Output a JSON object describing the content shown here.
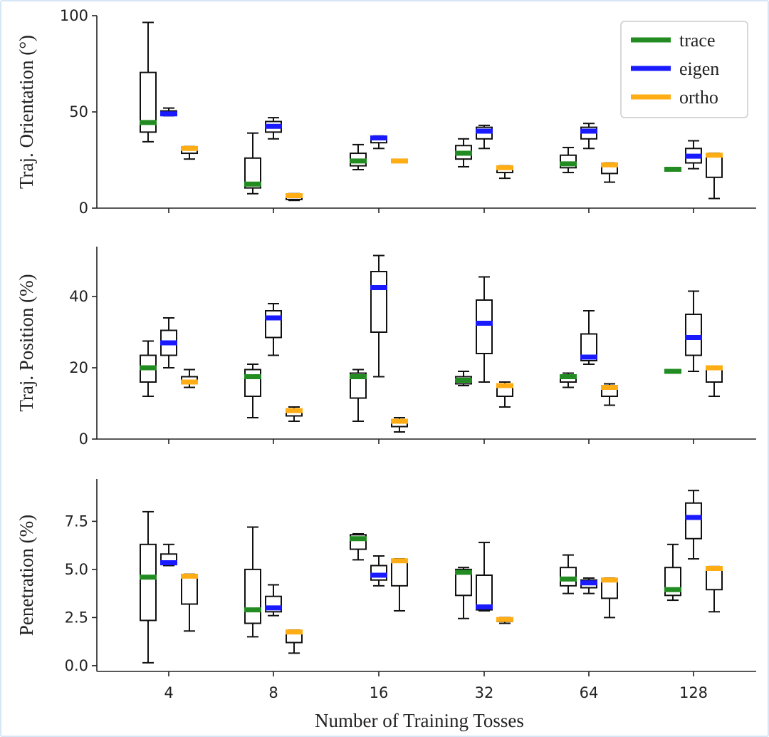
{
  "chart_data": {
    "type": "box",
    "xlabel": "Number of Training Tosses",
    "categories": [
      "4",
      "8",
      "16",
      "32",
      "64",
      "128"
    ],
    "series_names": [
      "trace",
      "eigen",
      "ortho"
    ],
    "colors": {
      "trace": "#228b22",
      "eigen": "#1a1aff",
      "ortho": "#ffad14"
    },
    "legend": {
      "placement": "top-right",
      "entries": [
        "trace",
        "eigen",
        "ortho"
      ]
    },
    "panels": [
      {
        "ylabel": "Traj. Orientation (°)",
        "ylim": [
          0,
          100
        ],
        "yticks": [
          0,
          50,
          100
        ],
        "ytick_labels": [
          "0",
          "50",
          "100"
        ],
        "boxes": {
          "trace": [
            {
              "whislo": 34.5,
              "q1": 39.5,
              "med": 44.5,
              "q3": 70.5,
              "whishi": 96.5
            },
            {
              "whislo": 7.5,
              "q1": 10.5,
              "med": 12.5,
              "q3": 26,
              "whishi": 39
            },
            {
              "whislo": 20,
              "q1": 22,
              "med": 24.5,
              "q3": 28.5,
              "whishi": 33
            },
            {
              "whislo": 21.5,
              "q1": 25.5,
              "med": 28.5,
              "q3": 32.5,
              "whishi": 36
            },
            {
              "whislo": 18.5,
              "q1": 21,
              "med": 23,
              "q3": 27.5,
              "whishi": 31.5
            },
            {
              "whislo": 19.5,
              "q1": 19.8,
              "med": 20.2,
              "q3": 20.6,
              "whishi": 21
            }
          ],
          "eigen": [
            {
              "whislo": 48,
              "q1": 48.5,
              "med": 49,
              "q3": 50.5,
              "whishi": 52
            },
            {
              "whislo": 36,
              "q1": 39.5,
              "med": 42.5,
              "q3": 45,
              "whishi": 47
            },
            {
              "whislo": 31,
              "q1": 34,
              "med": 36.5,
              "q3": 37,
              "whishi": 37.5
            },
            {
              "whislo": 31,
              "q1": 36,
              "med": 40,
              "q3": 42,
              "whishi": 43
            },
            {
              "whislo": 31,
              "q1": 36,
              "med": 40,
              "q3": 42,
              "whishi": 44
            },
            {
              "whislo": 20.5,
              "q1": 23.5,
              "med": 27,
              "q3": 31,
              "whishi": 35
            }
          ],
          "ortho": [
            {
              "whislo": 25.5,
              "q1": 28.5,
              "med": 31,
              "q3": 31.5,
              "whishi": 32
            },
            {
              "whislo": 4,
              "q1": 4.5,
              "med": 6.5,
              "q3": 7,
              "whishi": 7.5
            },
            {
              "whislo": 24,
              "q1": 24.2,
              "med": 24.5,
              "q3": 24.7,
              "whishi": 25
            },
            {
              "whislo": 15.5,
              "q1": 18.5,
              "med": 21,
              "q3": 21.5,
              "whishi": 22
            },
            {
              "whislo": 13.5,
              "q1": 18,
              "med": 22.5,
              "q3": 23,
              "whishi": 23.5
            },
            {
              "whislo": 5,
              "q1": 16,
              "med": 27.5,
              "q3": 28,
              "whishi": 28.5
            }
          ]
        }
      },
      {
        "ylabel": "Traj. Position (%)",
        "ylim": [
          0,
          54
        ],
        "yticks": [
          0,
          20,
          40
        ],
        "ytick_labels": [
          "0",
          "20",
          "40"
        ],
        "boxes": {
          "trace": [
            {
              "whislo": 12,
              "q1": 16,
              "med": 20,
              "q3": 23.5,
              "whishi": 27.5
            },
            {
              "whislo": 6,
              "q1": 12,
              "med": 17.5,
              "q3": 19.5,
              "whishi": 21
            },
            {
              "whislo": 5,
              "q1": 11.5,
              "med": 17.5,
              "q3": 18.5,
              "whishi": 19.5
            },
            {
              "whislo": 15,
              "q1": 15.5,
              "med": 16.5,
              "q3": 17.5,
              "whishi": 19
            },
            {
              "whislo": 14.5,
              "q1": 16,
              "med": 17.5,
              "q3": 18,
              "whishi": 18.5
            },
            {
              "whislo": 18.5,
              "q1": 18.7,
              "med": 19,
              "q3": 19.2,
              "whishi": 19.5
            }
          ],
          "eigen": [
            {
              "whislo": 20,
              "q1": 23.5,
              "med": 27,
              "q3": 30.5,
              "whishi": 34
            },
            {
              "whislo": 23.5,
              "q1": 28.5,
              "med": 34,
              "q3": 36,
              "whishi": 38
            },
            {
              "whislo": 17.5,
              "q1": 30,
              "med": 42.5,
              "q3": 47,
              "whishi": 51.5
            },
            {
              "whislo": 16,
              "q1": 24,
              "med": 32.5,
              "q3": 39,
              "whishi": 45.5
            },
            {
              "whislo": 21,
              "q1": 22,
              "med": 23,
              "q3": 29.5,
              "whishi": 36
            },
            {
              "whislo": 19,
              "q1": 23.5,
              "med": 28.5,
              "q3": 35,
              "whishi": 41.5
            }
          ],
          "ortho": [
            {
              "whislo": 14.5,
              "q1": 16,
              "med": 16,
              "q3": 17.5,
              "whishi": 19.5
            },
            {
              "whislo": 5,
              "q1": 6.5,
              "med": 8,
              "q3": 8.5,
              "whishi": 9
            },
            {
              "whislo": 2,
              "q1": 3.5,
              "med": 5,
              "q3": 5.5,
              "whishi": 6
            },
            {
              "whislo": 9,
              "q1": 12,
              "med": 15,
              "q3": 15.5,
              "whishi": 16
            },
            {
              "whislo": 9.5,
              "q1": 12,
              "med": 14.5,
              "q3": 15,
              "whishi": 15.5
            },
            {
              "whislo": 12,
              "q1": 16,
              "med": 20,
              "q3": 20.3,
              "whishi": 20.5
            }
          ]
        }
      },
      {
        "ylabel": "Penetration (%)",
        "ylim": [
          -0.3,
          9.7
        ],
        "yticks": [
          0,
          2.5,
          5,
          7.5
        ],
        "ytick_labels": [
          "0.0",
          "2.5",
          "5.0",
          "7.5"
        ],
        "boxes": {
          "trace": [
            {
              "whislo": 0.15,
              "q1": 2.35,
              "med": 4.6,
              "q3": 6.3,
              "whishi": 8
            },
            {
              "whislo": 1.5,
              "q1": 2.2,
              "med": 2.9,
              "q3": 5,
              "whishi": 7.2
            },
            {
              "whislo": 5.5,
              "q1": 6.05,
              "med": 6.6,
              "q3": 6.8,
              "whishi": 6.85
            },
            {
              "whislo": 2.45,
              "q1": 3.65,
              "med": 4.85,
              "q3": 5,
              "whishi": 5.1
            },
            {
              "whislo": 3.75,
              "q1": 4.15,
              "med": 4.5,
              "q3": 5.1,
              "whishi": 5.75
            },
            {
              "whislo": 3.4,
              "q1": 3.65,
              "med": 3.95,
              "q3": 5.1,
              "whishi": 6.3
            }
          ],
          "eigen": [
            {
              "whislo": 5.2,
              "q1": 5.25,
              "med": 5.35,
              "q3": 5.8,
              "whishi": 6.3
            },
            {
              "whislo": 2.6,
              "q1": 2.8,
              "med": 3,
              "q3": 3.6,
              "whishi": 4.2
            },
            {
              "whislo": 4.15,
              "q1": 4.45,
              "med": 4.7,
              "q3": 5.2,
              "whishi": 5.7
            },
            {
              "whislo": 2.85,
              "q1": 2.9,
              "med": 3.05,
              "q3": 4.7,
              "whishi": 6.4
            },
            {
              "whislo": 3.75,
              "q1": 4.05,
              "med": 4.3,
              "q3": 4.45,
              "whishi": 4.55
            },
            {
              "whislo": 5.55,
              "q1": 6.6,
              "med": 7.7,
              "q3": 8.45,
              "whishi": 9.1
            }
          ],
          "ortho": [
            {
              "whislo": 1.8,
              "q1": 3.2,
              "med": 4.65,
              "q3": 4.7,
              "whishi": 4.75
            },
            {
              "whislo": 0.65,
              "q1": 1.2,
              "med": 1.75,
              "q3": 1.8,
              "whishi": 1.85
            },
            {
              "whislo": 2.85,
              "q1": 4.15,
              "med": 5.45,
              "q3": 5.5,
              "whishi": 5.55
            },
            {
              "whislo": 2.2,
              "q1": 2.3,
              "med": 2.4,
              "q3": 2.45,
              "whishi": 2.5
            },
            {
              "whislo": 2.5,
              "q1": 3.5,
              "med": 4.45,
              "q3": 4.5,
              "whishi": 4.55
            },
            {
              "whislo": 2.8,
              "q1": 3.95,
              "med": 5.05,
              "q3": 5.1,
              "whishi": 5.15
            }
          ]
        }
      }
    ]
  }
}
